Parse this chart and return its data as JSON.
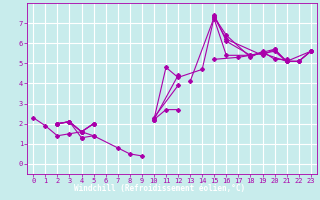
{
  "title": "",
  "xlabel": "Windchill (Refroidissement éolien,°C)",
  "ylabel": "",
  "bg_color": "#c8ecec",
  "line_color": "#aa00aa",
  "xlabel_bg": "#7b3f7b",
  "xlabel_fg": "#ffffff",
  "grid_color": "#ffffff",
  "xlim": [
    -0.5,
    23.5
  ],
  "ylim": [
    -0.5,
    8.0
  ],
  "xticks": [
    0,
    1,
    2,
    3,
    4,
    5,
    6,
    7,
    8,
    9,
    10,
    11,
    12,
    13,
    14,
    15,
    16,
    17,
    18,
    19,
    20,
    21,
    22,
    23
  ],
  "yticks": [
    0,
    1,
    2,
    3,
    4,
    5,
    6,
    7
  ],
  "series": [
    {
      "segments": [
        {
          "x": [
            0,
            1,
            2,
            3,
            4,
            5
          ],
          "y": [
            2.3,
            1.9,
            1.4,
            1.5,
            1.6,
            1.4
          ]
        },
        {
          "x": [
            10,
            11,
            12
          ],
          "y": [
            2.2,
            2.7,
            2.7
          ]
        },
        {
          "x": [
            15,
            17,
            19,
            21,
            23
          ],
          "y": [
            5.2,
            5.3,
            5.5,
            5.1,
            5.6
          ]
        }
      ]
    },
    {
      "segments": [
        {
          "x": [
            2,
            3,
            4
          ],
          "y": [
            2.0,
            2.1,
            1.3
          ]
        },
        {
          "x": [
            4,
            5,
            7,
            8,
            9
          ],
          "y": [
            1.3,
            1.4,
            0.8,
            0.5,
            0.4
          ]
        },
        {
          "x": [
            13,
            15
          ],
          "y": [
            4.1,
            7.3
          ]
        },
        {
          "x": [
            15,
            16,
            18,
            19,
            20,
            21
          ],
          "y": [
            7.3,
            6.4,
            5.3,
            5.6,
            5.2,
            5.2
          ]
        }
      ]
    },
    {
      "segments": [
        {
          "x": [
            2,
            3,
            4,
            5
          ],
          "y": [
            2.0,
            2.1,
            1.6,
            2.0
          ]
        },
        {
          "x": [
            10,
            12
          ],
          "y": [
            2.3,
            3.9
          ]
        },
        {
          "x": [
            15,
            16,
            18,
            20,
            21,
            22,
            23
          ],
          "y": [
            7.4,
            6.1,
            5.4,
            5.7,
            5.1,
            5.1,
            5.6
          ]
        }
      ]
    },
    {
      "segments": [
        {
          "x": [
            2,
            3,
            4,
            5
          ],
          "y": [
            2.0,
            2.1,
            1.6,
            2.0
          ]
        },
        {
          "x": [
            10,
            12
          ],
          "y": [
            2.2,
            4.4
          ]
        },
        {
          "x": [
            15,
            16,
            18,
            20,
            21,
            22,
            23
          ],
          "y": [
            7.2,
            5.4,
            5.4,
            5.6,
            5.1,
            5.1,
            5.6
          ]
        }
      ]
    },
    {
      "segments": [
        {
          "x": [
            2,
            3,
            4,
            5
          ],
          "y": [
            2.0,
            2.1,
            1.6,
            2.0
          ]
        },
        {
          "x": [
            10,
            11,
            12,
            14,
            15
          ],
          "y": [
            2.2,
            4.8,
            4.3,
            4.7,
            7.3
          ]
        },
        {
          "x": [
            15,
            16,
            19,
            20,
            21,
            22,
            23
          ],
          "y": [
            7.3,
            6.2,
            5.4,
            5.7,
            5.1,
            5.1,
            5.6
          ]
        }
      ]
    }
  ]
}
